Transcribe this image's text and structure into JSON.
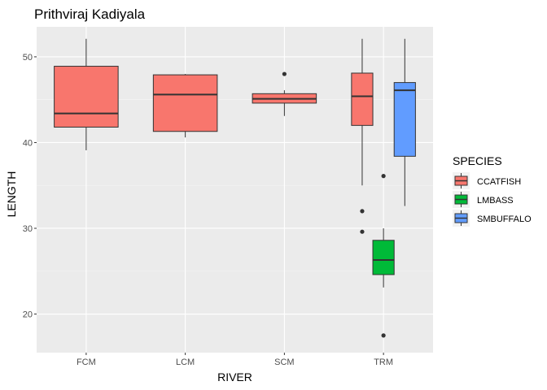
{
  "chart_data": {
    "type": "boxplot",
    "title": "Prithviraj Kadiyala",
    "xlabel": "RIVER",
    "ylabel": "LENGTH",
    "ylim": [
      15.5,
      53.5
    ],
    "y_ticks": [
      20,
      30,
      40,
      50
    ],
    "categories": [
      "FCM",
      "LCM",
      "SCM",
      "TRM"
    ],
    "legend": {
      "title": "SPECIES",
      "placement": "right",
      "entries": [
        {
          "label": "CCATFISH",
          "color": "#F8766D"
        },
        {
          "label": "LMBASS",
          "color": "#00BA38"
        },
        {
          "label": "SMBUFFALO",
          "color": "#619CFF"
        }
      ]
    },
    "groups": [
      {
        "category": "FCM",
        "species": "CCATFISH",
        "slot": 0,
        "slots": 1,
        "min": 39.1,
        "q1": 41.8,
        "median": 43.4,
        "q3": 48.9,
        "max": 52.1,
        "outliers": []
      },
      {
        "category": "LCM",
        "species": "CCATFISH",
        "slot": 0,
        "slots": 1,
        "min": 40.6,
        "q1": 41.3,
        "median": 45.6,
        "q3": 47.9,
        "max": 48.0,
        "outliers": []
      },
      {
        "category": "SCM",
        "species": "CCATFISH",
        "slot": 0,
        "slots": 1,
        "min": 43.1,
        "q1": 44.6,
        "median": 45.1,
        "q3": 45.7,
        "max": 46.1,
        "outliers": [
          48.0
        ]
      },
      {
        "category": "TRM",
        "species": "CCATFISH",
        "slot": 0,
        "slots": 3,
        "min": 35.0,
        "q1": 42.0,
        "median": 45.4,
        "q3": 48.1,
        "max": 52.1,
        "outliers": [
          32.0,
          29.6
        ]
      },
      {
        "category": "TRM",
        "species": "LMBASS",
        "slot": 1,
        "slots": 3,
        "min": 23.1,
        "q1": 24.6,
        "median": 26.3,
        "q3": 28.6,
        "max": 30.0,
        "outliers": [
          36.1,
          17.5
        ]
      },
      {
        "category": "TRM",
        "species": "SMBUFFALO",
        "slot": 2,
        "slots": 3,
        "min": 32.6,
        "q1": 38.4,
        "median": 46.1,
        "q3": 47.0,
        "max": 52.1,
        "outliers": []
      }
    ],
    "grid": true
  }
}
